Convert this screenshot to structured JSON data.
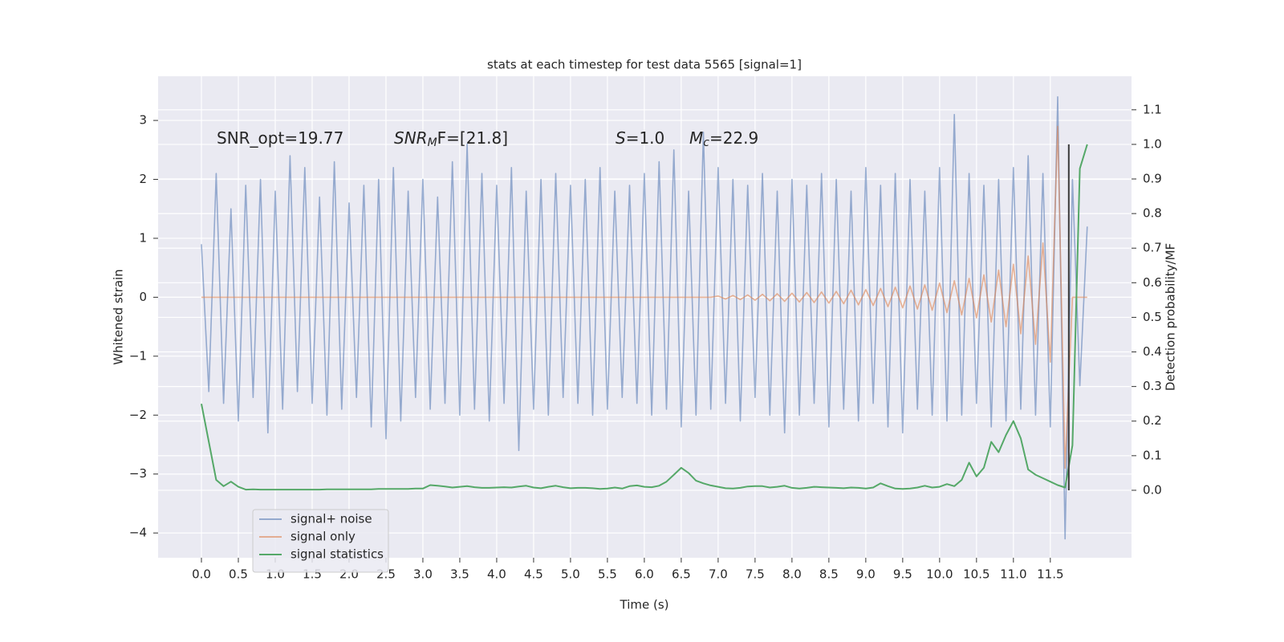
{
  "chart_data": {
    "type": "line",
    "title": "stats at each timestep for test data 5565 [signal=1]",
    "xlabel": "Time (s)",
    "ylabel": "Whitened strain",
    "y2label": "Detection probability/MF",
    "annotations": [
      [
        "SNR_opt=19.77"
      ],
      [
        "SNR",
        "M",
        "F=[21.8]"
      ],
      [
        "S",
        "=1.0"
      ],
      [
        "M",
        "c",
        "=22.9"
      ]
    ],
    "x": [
      0,
      0.1,
      0.2,
      0.3,
      0.4,
      0.5,
      0.6,
      0.7,
      0.8,
      0.9,
      1,
      1.1,
      1.2,
      1.3,
      1.4,
      1.5,
      1.6,
      1.7,
      1.8,
      1.9,
      2,
      2.1,
      2.2,
      2.3,
      2.4,
      2.5,
      2.6,
      2.7,
      2.8,
      2.9,
      3,
      3.1,
      3.2,
      3.3,
      3.4,
      3.5,
      3.6,
      3.7,
      3.8,
      3.9,
      4,
      4.1,
      4.2,
      4.3,
      4.4,
      4.5,
      4.6,
      4.7,
      4.8,
      4.9,
      5,
      5.1,
      5.2,
      5.3,
      5.4,
      5.5,
      5.6,
      5.7,
      5.8,
      5.9,
      6,
      6.1,
      6.2,
      6.3,
      6.4,
      6.5,
      6.6,
      6.7,
      6.8,
      6.9,
      7,
      7.1,
      7.2,
      7.3,
      7.4,
      7.5,
      7.6,
      7.7,
      7.8,
      7.9,
      8,
      8.1,
      8.2,
      8.3,
      8.4,
      8.5,
      8.6,
      8.7,
      8.8,
      8.9,
      9,
      9.1,
      9.2,
      9.3,
      9.4,
      9.5,
      9.6,
      9.7,
      9.8,
      9.9,
      10,
      10.1,
      10.2,
      10.3,
      10.4,
      10.5,
      10.6,
      10.7,
      10.8,
      10.9,
      11,
      11.1,
      11.2,
      11.3,
      11.4,
      11.5,
      11.6,
      11.7,
      11.8,
      11.9,
      12
    ],
    "series": [
      {
        "name": "signal+ noise",
        "color": "#4c72b0",
        "alpha": 0.55,
        "values": [
          0.9,
          -1.6,
          2.1,
          -1.8,
          1.5,
          -2.1,
          1.9,
          -1.7,
          2.0,
          -2.3,
          1.8,
          -1.9,
          2.4,
          -1.6,
          2.2,
          -1.8,
          1.7,
          -2.0,
          2.3,
          -1.9,
          1.6,
          -1.7,
          1.9,
          -2.2,
          2.0,
          -2.4,
          2.2,
          -2.1,
          1.8,
          -1.7,
          2.0,
          -1.9,
          1.7,
          -1.8,
          2.3,
          -2.0,
          2.6,
          -1.9,
          2.1,
          -2.1,
          1.9,
          -1.8,
          2.2,
          -2.6,
          1.8,
          -1.9,
          2.0,
          -2.0,
          2.1,
          -1.7,
          1.9,
          -1.8,
          2.0,
          -2.0,
          2.2,
          -1.9,
          1.8,
          -1.7,
          1.9,
          -1.8,
          2.1,
          -2.0,
          2.3,
          -1.9,
          2.5,
          -2.2,
          1.8,
          -2.0,
          2.8,
          -1.9,
          2.2,
          -1.8,
          2.0,
          -2.1,
          1.9,
          -1.7,
          2.1,
          -2.0,
          1.8,
          -2.3,
          2.0,
          -2.0,
          1.9,
          -1.8,
          2.1,
          -2.2,
          2.0,
          -1.9,
          1.8,
          -2.1,
          2.2,
          -1.8,
          1.9,
          -2.2,
          2.1,
          -2.3,
          2.0,
          -1.9,
          1.8,
          -2.0,
          2.2,
          -2.1,
          3.1,
          -2.0,
          2.1,
          -1.8,
          1.9,
          -2.2,
          2.0,
          -2.1,
          2.2,
          -1.9,
          2.4,
          -2.0,
          2.1,
          -2.2,
          3.4,
          -4.1,
          2.0,
          -1.5,
          1.2
        ]
      },
      {
        "name": "signal only",
        "color": "#dd8452",
        "alpha": 0.6,
        "values": [
          0,
          0,
          0,
          0,
          0,
          0,
          0,
          0,
          0,
          0,
          0,
          0,
          0,
          0,
          0,
          0,
          0,
          0,
          0,
          0,
          0,
          0,
          0,
          0,
          0,
          0,
          0,
          0,
          0,
          0,
          0,
          0,
          0,
          0,
          0,
          0,
          0,
          0,
          0,
          0,
          0,
          0,
          0,
          0,
          0,
          0,
          0,
          0,
          0,
          0,
          0,
          0,
          0,
          0,
          0,
          0,
          0,
          0,
          0,
          0,
          0,
          0,
          0,
          0,
          0,
          0,
          0,
          0,
          0,
          0,
          0.02,
          -0.03,
          0.03,
          -0.04,
          0.04,
          -0.05,
          0.05,
          -0.06,
          0.06,
          -0.07,
          0.07,
          -0.08,
          0.08,
          -0.09,
          0.09,
          -0.1,
          0.1,
          -0.11,
          0.12,
          -0.13,
          0.13,
          -0.14,
          0.15,
          -0.16,
          0.17,
          -0.18,
          0.19,
          -0.2,
          0.21,
          -0.22,
          0.24,
          -0.26,
          0.28,
          -0.3,
          0.32,
          -0.35,
          0.38,
          -0.42,
          0.46,
          -0.5,
          0.56,
          -0.62,
          0.7,
          -0.8,
          0.92,
          -1.1,
          2.9,
          -2.9,
          0,
          0,
          0
        ]
      },
      {
        "name": "signal statistics",
        "color": "#55a868",
        "alpha": 1,
        "axis": "y2",
        "values": [
          0.25,
          0.14,
          0.03,
          0.012,
          0.025,
          0.01,
          0.002,
          0.003,
          0.002,
          0.002,
          0.002,
          0.002,
          0.002,
          0.002,
          0.002,
          0.002,
          0.002,
          0.003,
          0.003,
          0.003,
          0.003,
          0.003,
          0.003,
          0.003,
          0.004,
          0.004,
          0.004,
          0.004,
          0.004,
          0.005,
          0.005,
          0.015,
          0.013,
          0.011,
          0.008,
          0.01,
          0.012,
          0.009,
          0.007,
          0.007,
          0.008,
          0.009,
          0.008,
          0.011,
          0.013,
          0.008,
          0.006,
          0.01,
          0.013,
          0.009,
          0.006,
          0.007,
          0.007,
          0.006,
          0.004,
          0.005,
          0.008,
          0.005,
          0.012,
          0.014,
          0.01,
          0.009,
          0.013,
          0.025,
          0.045,
          0.065,
          0.05,
          0.028,
          0.02,
          0.014,
          0.01,
          0.006,
          0.005,
          0.007,
          0.011,
          0.012,
          0.012,
          0.008,
          0.01,
          0.013,
          0.007,
          0.005,
          0.007,
          0.01,
          0.009,
          0.008,
          0.007,
          0.006,
          0.008,
          0.007,
          0.005,
          0.008,
          0.02,
          0.012,
          0.005,
          0.004,
          0.005,
          0.008,
          0.013,
          0.008,
          0.01,
          0.018,
          0.012,
          0.03,
          0.08,
          0.04,
          0.065,
          0.14,
          0.11,
          0.16,
          0.2,
          0.15,
          0.06,
          0.045,
          0.035,
          0.025,
          0.015,
          0.008,
          0.13,
          0.93,
          1.0
        ]
      }
    ],
    "vlines": [
      {
        "x": 11.75,
        "ymin": 0,
        "ymax": 1,
        "axis": "y2",
        "color": "#3a3a3a"
      }
    ],
    "xlim": [
      -0.587,
      12.6
    ],
    "ylim": [
      -4.42,
      3.75
    ],
    "y2lim": [
      -0.195,
      1.197
    ],
    "xticks": [
      {
        "value": 0,
        "label": "0.0"
      },
      0.5,
      {
        "value": 1,
        "label": "1.0"
      },
      1.5,
      {
        "value": 2,
        "label": "2.0"
      },
      2.5,
      {
        "value": 3,
        "label": "3.0"
      },
      3.5,
      {
        "value": 4,
        "label": "4.0"
      },
      4.5,
      {
        "value": 5,
        "label": "5.0"
      },
      5.5,
      {
        "value": 6,
        "label": "6.0"
      },
      6.5,
      {
        "value": 7,
        "label": "7.0"
      },
      7.5,
      {
        "value": 8,
        "label": "8.0"
      },
      8.5,
      {
        "value": 9,
        "label": "9.0"
      },
      9.5,
      {
        "value": 10,
        "label": "10.0"
      },
      10.5,
      {
        "value": 11,
        "label": "11.0"
      },
      11.5
    ],
    "yticks": [
      {
        "value": -4,
        "label": "−4"
      },
      {
        "value": -3,
        "label": "−3"
      },
      {
        "value": -2,
        "label": "−2"
      },
      {
        "value": -1,
        "label": "−1"
      },
      0,
      1,
      2,
      3
    ],
    "y2ticks": [
      {
        "value": 0,
        "label": "0.0"
      },
      0.1,
      0.2,
      0.3,
      0.4,
      0.5,
      0.6,
      0.7,
      0.8,
      0.9,
      {
        "value": 1,
        "label": "1.0"
      },
      1.1
    ],
    "grid": true,
    "legend": "lower left"
  }
}
